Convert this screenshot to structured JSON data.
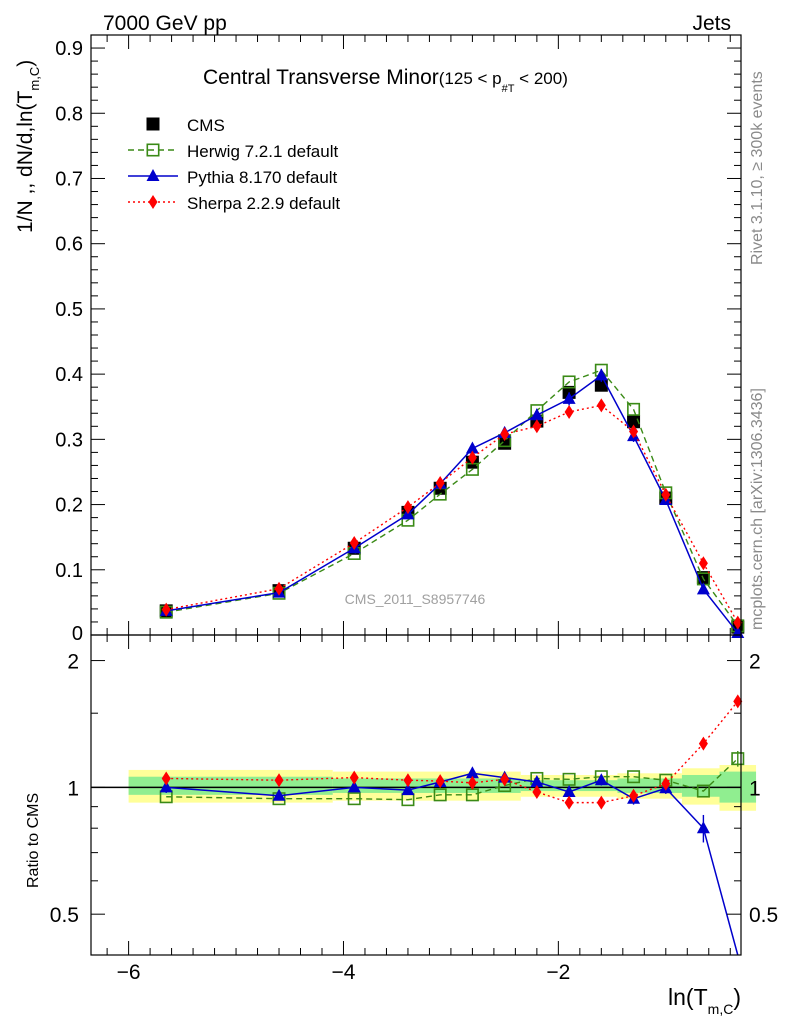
{
  "header": {
    "energy": "7000 GeV pp",
    "category": "Jets"
  },
  "side_labels": {
    "rivet": "Rivet 3.1.10, ≥ 300k events",
    "mcplots": "mcplots.cern.ch [arXiv:1306.3436]"
  },
  "chart_data": [
    {
      "type": "line",
      "title": "Central Transverse Minor",
      "title_range": {
        "prefix": "(125 < p",
        "subscript": "#T",
        "suffix": " < 200)"
      },
      "ylabel": "1/N ,, dN/d,ln(T",
      "ylabel_sub": "m,C",
      "ylabel_close": ")",
      "watermark": "CMS_2011_S8957746",
      "xlim": [
        -6.35,
        -0.3
      ],
      "ylim": [
        0,
        0.92
      ],
      "yticks": [
        0.1,
        0.2,
        0.3,
        0.4,
        0.5,
        0.6,
        0.7,
        0.8,
        0.9
      ],
      "ytick_labels": [
        "0.1",
        "0.2",
        "0.3",
        "0.4",
        "0.5",
        "0.6",
        "0.7",
        "0.8",
        "0.9"
      ],
      "ybottom_label": "0",
      "x": [
        -5.65,
        -4.6,
        -3.9,
        -3.4,
        -3.1,
        -2.8,
        -2.5,
        -2.2,
        -1.9,
        -1.6,
        -1.3,
        -1.0,
        -0.65,
        -0.33
      ],
      "legend_position": "top-left",
      "series": [
        {
          "name": "CMS",
          "color": "#000000",
          "marker": "square-filled",
          "line": "none",
          "values": [
            0.037,
            0.068,
            0.133,
            0.188,
            0.225,
            0.265,
            0.294,
            0.328,
            0.372,
            0.383,
            0.327,
            0.21,
            0.088,
            0.012
          ]
        },
        {
          "name": "Herwig 7.2.1 default",
          "color": "#3a8a16",
          "marker": "square-open",
          "line": "dashed",
          "values": [
            0.035,
            0.064,
            0.125,
            0.176,
            0.216,
            0.254,
            0.298,
            0.344,
            0.388,
            0.406,
            0.346,
            0.218,
            0.086,
            0.014
          ]
        },
        {
          "name": "Pythia 8.170 default",
          "color": "#0000cc",
          "marker": "triangle",
          "line": "solid",
          "values": [
            0.037,
            0.065,
            0.133,
            0.185,
            0.232,
            0.286,
            0.31,
            0.337,
            0.362,
            0.398,
            0.305,
            0.207,
            0.07,
            0.003
          ],
          "errors": [
            0.002,
            0.003,
            0.004,
            0.006,
            0.007,
            0.008,
            0.009,
            0.01,
            0.01,
            0.01,
            0.009,
            0.006,
            0.004,
            0.002
          ]
        },
        {
          "name": "Sherpa 2.2.9 default",
          "color": "#ff0000",
          "marker": "diamond",
          "line": "dotted",
          "values": [
            0.039,
            0.071,
            0.141,
            0.196,
            0.233,
            0.272,
            0.308,
            0.32,
            0.342,
            0.352,
            0.312,
            0.215,
            0.11,
            0.019
          ]
        }
      ]
    },
    {
      "type": "line",
      "ylabel": "Ratio to CMS",
      "xlabel": "ln(T",
      "xlabel_sub": "m,C",
      "xlabel_close": ")",
      "log_y": true,
      "ylim": [
        0.4,
        2.3
      ],
      "yticks": [
        0.5,
        1,
        2
      ],
      "ytick_labels": [
        "0.5",
        "1",
        "2"
      ],
      "xticks": [
        -6,
        -4,
        -2
      ],
      "xtick_labels": [
        "−6",
        "−4",
        "−2"
      ],
      "bands": {
        "green_color": "#90ee90",
        "yellow_color": "#ffff99",
        "bins": [
          {
            "x0": -6.0,
            "x1": -4.1,
            "green": [
              0.96,
              1.06
            ],
            "yellow": [
              0.92,
              1.1
            ]
          },
          {
            "x0": -4.1,
            "x1": -2.35,
            "green": [
              0.97,
              1.05
            ],
            "yellow": [
              0.93,
              1.09
            ]
          },
          {
            "x0": -2.35,
            "x1": -1.45,
            "green": [
              0.98,
              1.04
            ],
            "yellow": [
              0.95,
              1.07
            ]
          },
          {
            "x0": -1.45,
            "x1": -0.85,
            "green": [
              0.97,
              1.05
            ],
            "yellow": [
              0.94,
              1.08
            ]
          },
          {
            "x0": -0.85,
            "x1": -0.5,
            "green": [
              0.95,
              1.07
            ],
            "yellow": [
              0.91,
              1.11
            ]
          },
          {
            "x0": -0.5,
            "x1": -0.16,
            "green": [
              0.92,
              1.09
            ],
            "yellow": [
              0.88,
              1.13
            ]
          }
        ]
      },
      "series": [
        {
          "name": "Herwig 7.2.1 default",
          "values": [
            0.95,
            0.94,
            0.94,
            0.935,
            0.96,
            0.96,
            1.01,
            1.05,
            1.045,
            1.06,
            1.06,
            1.04,
            0.98,
            1.17
          ],
          "errors": [
            0,
            0,
            0,
            0,
            0,
            0,
            0,
            0,
            0,
            0,
            0,
            0,
            0,
            0.05
          ]
        },
        {
          "name": "Pythia 8.170 default",
          "values": [
            1.0,
            0.955,
            1.0,
            0.985,
            1.03,
            1.08,
            1.055,
            1.03,
            0.975,
            1.04,
            0.94,
            0.995,
            0.8,
            0.25
          ],
          "errors": [
            0.03,
            0.02,
            0.02,
            0.02,
            0.03,
            0.03,
            0.03,
            0.03,
            0.03,
            0.03,
            0.03,
            0.03,
            0.06,
            0.0
          ]
        },
        {
          "name": "Sherpa 2.2.9 default",
          "values": [
            1.05,
            1.04,
            1.055,
            1.04,
            1.035,
            1.025,
            1.045,
            0.975,
            0.92,
            0.92,
            0.955,
            1.02,
            1.27,
            1.6
          ],
          "errors": [
            0,
            0,
            0,
            0,
            0,
            0,
            0,
            0,
            0,
            0,
            0,
            0,
            0.02,
            0.05
          ]
        }
      ]
    }
  ]
}
